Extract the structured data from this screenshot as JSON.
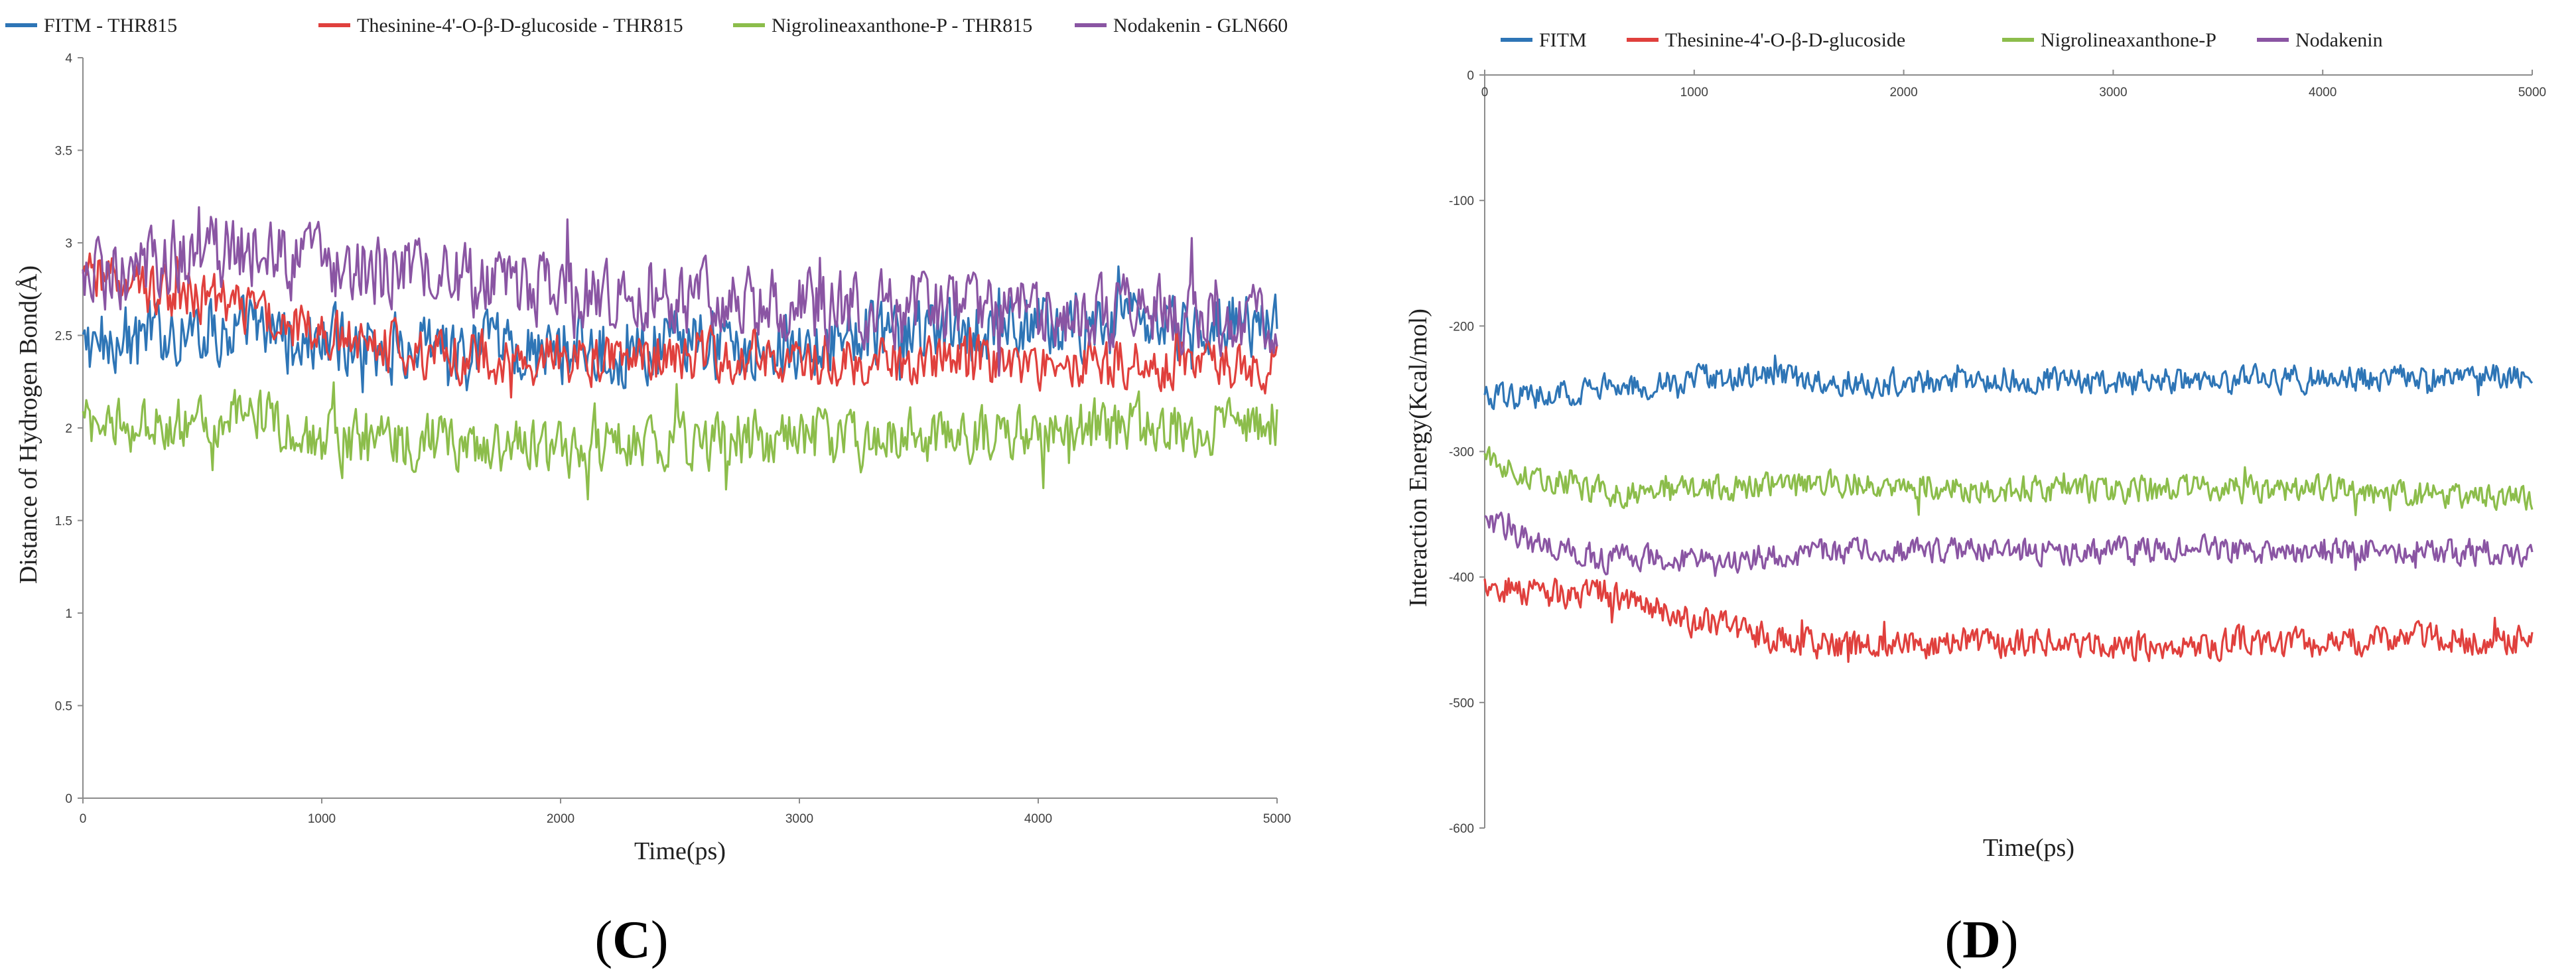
{
  "chart_data": [
    {
      "panel": "C",
      "type": "line",
      "title": "",
      "xlabel": "Time(ps)",
      "ylabel": "Distance of Hydrogen Bond(Å)",
      "xlim": [
        0,
        5000
      ],
      "ylim": [
        0,
        4
      ],
      "xticks": [
        0,
        1000,
        2000,
        3000,
        4000,
        5000
      ],
      "yticks": [
        0,
        0.5,
        1,
        1.5,
        2,
        2.5,
        3,
        3.5,
        4
      ],
      "x_axis_position": "bottom",
      "grid": false,
      "legend_position": "top",
      "series": [
        {
          "name": "FITM - THR815",
          "color": "#2e75b6",
          "x": [
            0,
            250,
            500,
            750,
            1000,
            1250,
            1500,
            1750,
            2000,
            2250,
            2500,
            2750,
            3000,
            3250,
            3500,
            3750,
            4000,
            4250,
            4500,
            4750,
            5000
          ],
          "values": [
            2.45,
            2.5,
            2.55,
            2.5,
            2.45,
            2.45,
            2.4,
            2.42,
            2.42,
            2.42,
            2.45,
            2.45,
            2.47,
            2.5,
            2.5,
            2.5,
            2.55,
            2.55,
            2.52,
            2.6,
            2.55
          ],
          "noise": 0.16
        },
        {
          "name": "Thesinine-4'-O-β-D-glucoside - THR815",
          "color": "#e0403d",
          "x": [
            0,
            250,
            500,
            750,
            1000,
            1250,
            1500,
            1750,
            2000,
            2250,
            2500,
            2750,
            3000,
            3250,
            3500,
            3750,
            4000,
            4250,
            4500,
            4750,
            5000
          ],
          "values": [
            2.8,
            2.75,
            2.7,
            2.62,
            2.5,
            2.45,
            2.4,
            2.38,
            2.38,
            2.38,
            2.4,
            2.4,
            2.35,
            2.35,
            2.35,
            2.35,
            2.35,
            2.35,
            2.35,
            2.35,
            2.35
          ],
          "noise": 0.12
        },
        {
          "name": "Nigrolineaxanthone-P - THR815",
          "color": "#8cbd4b",
          "x": [
            0,
            250,
            500,
            750,
            1000,
            1250,
            1500,
            1750,
            2000,
            2250,
            2500,
            2750,
            3000,
            3250,
            3500,
            3750,
            4000,
            4250,
            4500,
            4750,
            5000
          ],
          "values": [
            2.05,
            2.02,
            2.0,
            2.05,
            1.95,
            1.92,
            1.92,
            1.9,
            1.88,
            1.9,
            1.92,
            1.92,
            1.95,
            1.92,
            1.95,
            1.95,
            2.0,
            2.0,
            2.0,
            2.0,
            2.0
          ],
          "noise": 0.13
        },
        {
          "name": "Nodakenin - GLN660",
          "color": "#8a55a3",
          "x": [
            0,
            250,
            500,
            750,
            1000,
            1250,
            1500,
            1750,
            2000,
            2250,
            2500,
            2750,
            3000,
            3250,
            3500,
            3750,
            4000,
            4250,
            4500,
            4750,
            5000
          ],
          "values": [
            2.8,
            2.9,
            2.95,
            2.95,
            2.9,
            2.85,
            2.82,
            2.75,
            2.72,
            2.7,
            2.68,
            2.7,
            2.65,
            2.65,
            2.62,
            2.62,
            2.62,
            2.6,
            2.62,
            2.6,
            2.6
          ],
          "noise": 0.17
        }
      ]
    },
    {
      "panel": "D",
      "type": "line",
      "title": "",
      "xlabel": "Time(ps)",
      "ylabel": "Interaction Energy(Kcal/mol)",
      "xlim": [
        0,
        5000
      ],
      "ylim": [
        -600,
        0
      ],
      "xticks": [
        0,
        1000,
        2000,
        3000,
        4000,
        5000
      ],
      "yticks": [
        0,
        -100,
        -200,
        -300,
        -400,
        -500,
        -600
      ],
      "x_axis_position": "top",
      "grid": false,
      "legend_position": "top",
      "series": [
        {
          "name": "FITM",
          "color": "#2e75b6",
          "x": [
            0,
            250,
            500,
            750,
            1000,
            1250,
            1500,
            1750,
            2000,
            2250,
            2500,
            2750,
            3000,
            3250,
            3500,
            3750,
            4000,
            4250,
            4500,
            4750,
            5000
          ],
          "values": [
            -258,
            -255,
            -250,
            -248,
            -242,
            -240,
            -242,
            -243,
            -245,
            -243,
            -242,
            -244,
            -245,
            -245,
            -245,
            -242,
            -242,
            -242,
            -240,
            -240,
            -240
          ],
          "noise": 9
        },
        {
          "name": "Thesinine-4'-O-β-D-glucoside",
          "color": "#e0403d",
          "x": [
            0,
            250,
            500,
            750,
            1000,
            1250,
            1500,
            1750,
            2000,
            2250,
            2500,
            2750,
            3000,
            3250,
            3500,
            3750,
            4000,
            4250,
            4500,
            4750,
            5000
          ],
          "values": [
            -405,
            -415,
            -410,
            -420,
            -435,
            -445,
            -452,
            -455,
            -455,
            -452,
            -452,
            -453,
            -455,
            -455,
            -452,
            -452,
            -452,
            -450,
            -448,
            -450,
            -452
          ],
          "noise": 10
        },
        {
          "name": "Nigrolineaxanthone-P",
          "color": "#8cbd4b",
          "x": [
            0,
            250,
            500,
            750,
            1000,
            1250,
            1500,
            1750,
            2000,
            2250,
            2500,
            2750,
            3000,
            3250,
            3500,
            3750,
            4000,
            4250,
            4500,
            4750,
            5000
          ],
          "values": [
            -305,
            -320,
            -330,
            -335,
            -330,
            -328,
            -325,
            -325,
            -328,
            -330,
            -330,
            -332,
            -330,
            -330,
            -330,
            -330,
            -330,
            -332,
            -335,
            -335,
            -338
          ],
          "noise": 9
        },
        {
          "name": "Nodakenin",
          "color": "#8a55a3",
          "x": [
            0,
            250,
            500,
            750,
            1000,
            1250,
            1500,
            1750,
            2000,
            2250,
            2500,
            2750,
            3000,
            3250,
            3500,
            3750,
            4000,
            4250,
            4500,
            4750,
            5000
          ],
          "values": [
            -355,
            -375,
            -385,
            -385,
            -385,
            -385,
            -382,
            -380,
            -380,
            -378,
            -378,
            -380,
            -380,
            -380,
            -378,
            -378,
            -380,
            -380,
            -380,
            -380,
            -380
          ],
          "noise": 9
        }
      ]
    }
  ],
  "panel_labels": {
    "c": {
      "open": "(",
      "letter": "C",
      "close": ")"
    },
    "d": {
      "open": "(",
      "letter": "D",
      "close": ")"
    }
  }
}
